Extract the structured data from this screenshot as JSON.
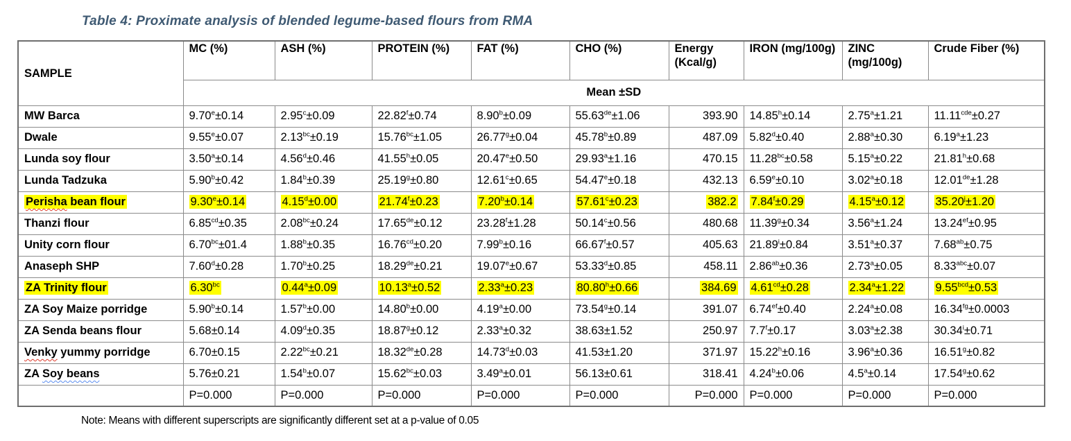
{
  "title": "Table 4: Proximate analysis of blended legume-based flours from RMA",
  "note": "Note: Means with different superscripts are significantly different set at a p-value of 0.05",
  "colors": {
    "title_text": "#3f5a73",
    "highlight": "#ffff00",
    "border": "#8a8a8a",
    "spellcheck_red": "#dd3a2a",
    "spellcheck_blue": "#5b8def"
  },
  "table": {
    "sample_header": "SAMPLE",
    "columns": [
      "MC (%)",
      "ASH (%)",
      "PROTEIN (%)",
      "FAT (%)",
      "CHO (%)",
      "Energy (Kcal/g)",
      "IRON (mg/100g)",
      "ZINC (mg/100g)",
      "Crude Fiber (%)"
    ],
    "subheader": "Mean ±SD",
    "rows": [
      {
        "sample": [
          {
            "t": "MW Barca"
          }
        ],
        "highlight": false,
        "values": [
          "9.70~e~±0.14",
          "2.95~c~±0.09",
          "22.82~f~±0.74",
          "8.90~b~±0.09",
          "55.63~de~±1.06",
          "393.90",
          "14.85~h~±0.14",
          "2.75~a~±1.21",
          "11.11~cde~±0.27"
        ]
      },
      {
        "sample": [
          {
            "t": "Dwale"
          }
        ],
        "highlight": false,
        "values": [
          "9.55~e~±0.07",
          "2.13~bc~±0.19",
          "15.76~bc~±1.05",
          "26.77~g~±0.04",
          "45.78~b~±0.89",
          "487.09",
          "5.82~d~±0.40",
          "2.88~a~±0.30",
          "6.19~a~±1.23"
        ]
      },
      {
        "sample": [
          {
            "t": "Lunda soy flour"
          }
        ],
        "highlight": false,
        "values": [
          "3.50~a~±0.14",
          "4.56~d~±0.46",
          "41.55~h~±0.05",
          "20.47~e~±0.50",
          "29.93~a~±1.16",
          "470.15",
          "11.28~bc~±0.58",
          "5.15~a~±0.22",
          "21.81~h~±0.68"
        ]
      },
      {
        "sample": [
          {
            "t": "Lunda Tadzuka"
          }
        ],
        "highlight": false,
        "values": [
          "5.90~b~±0.42",
          "1.84~b~±0.39",
          "25.19~g~±0.80",
          "12.61~c~±0.65",
          "54.47~e~±0.18",
          "432.13",
          "6.59~e~±0.10",
          "3.02~a~±0.18",
          "12.01~de~±1.28"
        ]
      },
      {
        "sample": [
          {
            "t": "Perisha",
            "u": "red"
          },
          {
            "t": " bean flour"
          }
        ],
        "highlight": true,
        "values": [
          "9.30~e~±0.14",
          "4.15~d~±0.00",
          "21.74~f~±0.23",
          "7.20~b~±0.14",
          "57.61~c~±0.23",
          "382.2",
          "7.84~f~±0.29",
          "4.15~a~±0.12",
          "35.20~j~±1.20"
        ]
      },
      {
        "sample": [
          {
            "t": "Thanzi flour"
          }
        ],
        "highlight": false,
        "values": [
          "6.85~cd~±0.35",
          "2.08~bc~±0.24",
          "17.65~de~±0.12",
          "23.28~f~±1.28",
          "50.14~c~±0.56",
          "480.68",
          "11.39~g~±0.34",
          "3.56~a~±1.24",
          "13.24~ef~±0.95"
        ]
      },
      {
        "sample": [
          {
            "t": "Unity corn flour"
          }
        ],
        "highlight": false,
        "values": [
          "6.70~bc~±01.4",
          "1.88~b~±0.35",
          "16.76~cd~±0.20",
          "7.99~b~±0.16",
          "66.67~f~±0.57",
          "405.63",
          "21.89~i~±0.84",
          "3.51~a~±0.37",
          "7.68~ab~±0.75"
        ]
      },
      {
        "sample": [
          {
            "t": "Anaseph SHP"
          }
        ],
        "highlight": false,
        "values": [
          "7.60~d~±0.28",
          "1.70~b~±0.25",
          "18.29~de~±0.21",
          "19.07~e~±0.67",
          "53.33~d~±0.85",
          "458.11",
          "2.86~ab~±0.36",
          "2.73~a~±0.05",
          "8.33~abc~±0.07"
        ]
      },
      {
        "sample": [
          {
            "t": "ZA Trinity flour"
          }
        ],
        "highlight": true,
        "values": [
          "6.30~bc~",
          "0.44~a~±0.09",
          "10.13~a~±0.52",
          "2.33~a~±0.23",
          "80.80~h~±0.66",
          "384.69",
          "4.61~cd~±0.28",
          "2.34~a~±1.22",
          "9.55~bcd~±0.53"
        ]
      },
      {
        "sample": [
          {
            "t": "ZA Soy Maize porridge"
          }
        ],
        "highlight": false,
        "values": [
          "5.90~b~±0.14",
          "1.57~b~±0.00",
          "14.80~b~±0.00",
          "4.19~a~±0.00",
          "73.54~g~±0.14",
          "391.07",
          "6.74~ef~±0.40",
          "2.24~a~±0.08",
          "16.34~fg~±0.0003"
        ]
      },
      {
        "sample": [
          {
            "t": "ZA Senda beans flour"
          }
        ],
        "highlight": false,
        "values": [
          "5.68±0.14",
          "4.09~d~±0.35",
          "18.87~g~±0.12",
          "2.33~a~±0.32",
          "38.63±1.52",
          "250.97",
          "7.7~f~±0.17",
          "3.03~a~±2.38",
          "30.34~i~±0.71"
        ]
      },
      {
        "sample": [
          {
            "t": "Venky",
            "u": "red"
          },
          {
            "t": " yummy porridge"
          }
        ],
        "highlight": false,
        "values": [
          "6.70±0.15",
          "2.22~bc~±0.21",
          "18.32~de~±0.28",
          "14.73~d~±0.03",
          "41.53±1.20",
          "371.97",
          "15.22~h~±0.16",
          "3.96~a~±0.36",
          "16.51~g~±0.82"
        ]
      },
      {
        "sample": [
          {
            "t": "ZA "
          },
          {
            "t": "Soy beans",
            "u": "blue"
          }
        ],
        "highlight": false,
        "values": [
          "5.76±0.21",
          "1.54~b~±0.07",
          "15.62~bc~±0.03",
          "3.49~a~±0.01",
          "56.13±0.61",
          "318.41",
          "4.24~b~±0.06",
          "4.5~a~±0.14",
          "17.54~g~±0.62"
        ]
      }
    ],
    "p_row": [
      "P=0.000",
      "P=0.000",
      "P=0.000",
      "P=0.000",
      "P=0.000",
      "P=0.000",
      "P=0.000",
      "P=0.000",
      "P=0.000"
    ]
  }
}
